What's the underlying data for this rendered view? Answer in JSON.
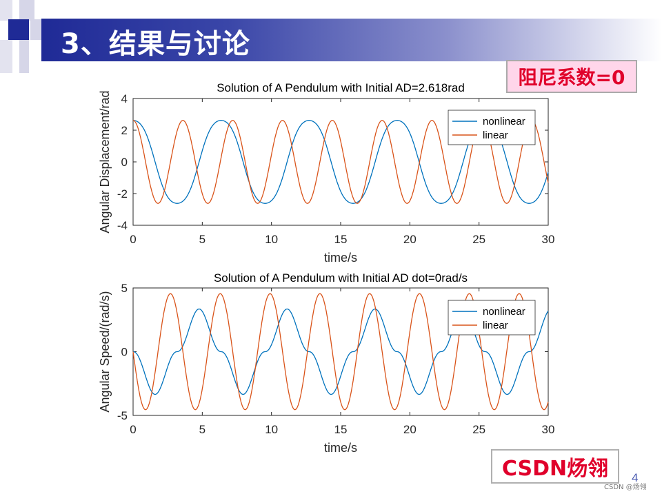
{
  "slide": {
    "title": "3、结果与讨论",
    "tag": "阻尼系数=0",
    "brand": "CSDN炀翎",
    "page_number": "4",
    "watermark": "CSDN @炀翎"
  },
  "colors": {
    "title_bar_dark": "#1f2a96",
    "nonlinear": "#0072bd",
    "linear": "#d95319",
    "tag_bg": "#ffd6ea",
    "tag_text": "#e0002b"
  },
  "chart_data": [
    {
      "type": "line",
      "title": "Solution of A Pendulum with Initial AD=2.618rad",
      "xlabel": "time/s",
      "ylabel": "Angular Displacement/rad",
      "xlim": [
        0,
        30
      ],
      "ylim": [
        -4,
        4
      ],
      "xticks": [
        0,
        5,
        10,
        15,
        20,
        25,
        30
      ],
      "yticks": [
        -4,
        -2,
        0,
        2,
        4
      ],
      "grid": false,
      "legend_position": "top-right",
      "series": [
        {
          "name": "nonlinear",
          "color": "#0072bd",
          "kind": "theta_nonlinear",
          "amplitude": 2.618,
          "period": 6.36
        },
        {
          "name": "linear",
          "color": "#d95319",
          "kind": "theta_linear",
          "amplitude": 2.618,
          "period": 3.6
        }
      ]
    },
    {
      "type": "line",
      "title": "Solution of A Pendulum with Initial AD dot=0rad/s",
      "xlabel": "time/s",
      "ylabel": "Angular Speed/(rad/s)",
      "xlim": [
        0,
        30
      ],
      "ylim": [
        -5,
        5
      ],
      "xticks": [
        0,
        5,
        10,
        15,
        20,
        25,
        30
      ],
      "yticks": [
        -5,
        0,
        5
      ],
      "grid": false,
      "legend_position": "top-right",
      "series": [
        {
          "name": "nonlinear",
          "color": "#0072bd",
          "kind": "omega_nonlinear",
          "amplitude": 3.35,
          "period": 6.36
        },
        {
          "name": "linear",
          "color": "#d95319",
          "kind": "omega_linear",
          "amplitude": 4.55,
          "period": 3.6
        }
      ]
    }
  ]
}
